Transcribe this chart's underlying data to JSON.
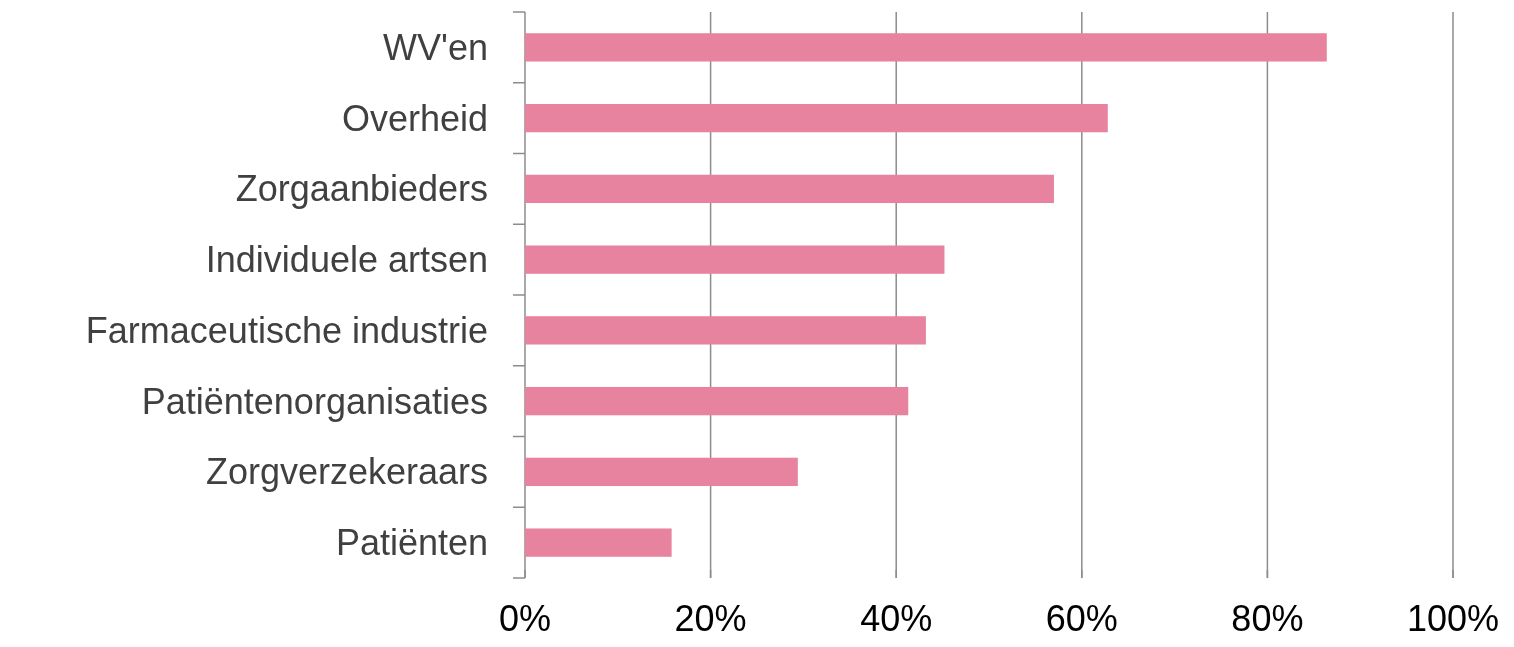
{
  "chart_data": {
    "type": "bar",
    "orientation": "horizontal",
    "categories": [
      "WV'en",
      "Overheid",
      "Zorgaanbieders",
      "Individuele artsen",
      "Farmaceutische industrie",
      "Patiëntenorganisaties",
      "Zorgverzekeraars",
      "Patiënten"
    ],
    "values": [
      86.4,
      62.8,
      57.0,
      45.2,
      43.2,
      41.3,
      29.4,
      15.8
    ],
    "color": "#e8839f",
    "xlim": [
      0,
      100
    ],
    "xticks": [
      {
        "value": 0,
        "label": "0%"
      },
      {
        "value": 20,
        "label": "20%"
      },
      {
        "value": 40,
        "label": "40%"
      },
      {
        "value": 60,
        "label": "60%"
      },
      {
        "value": 80,
        "label": "80%"
      },
      {
        "value": 100,
        "label": "100%"
      }
    ],
    "grid": "x"
  }
}
